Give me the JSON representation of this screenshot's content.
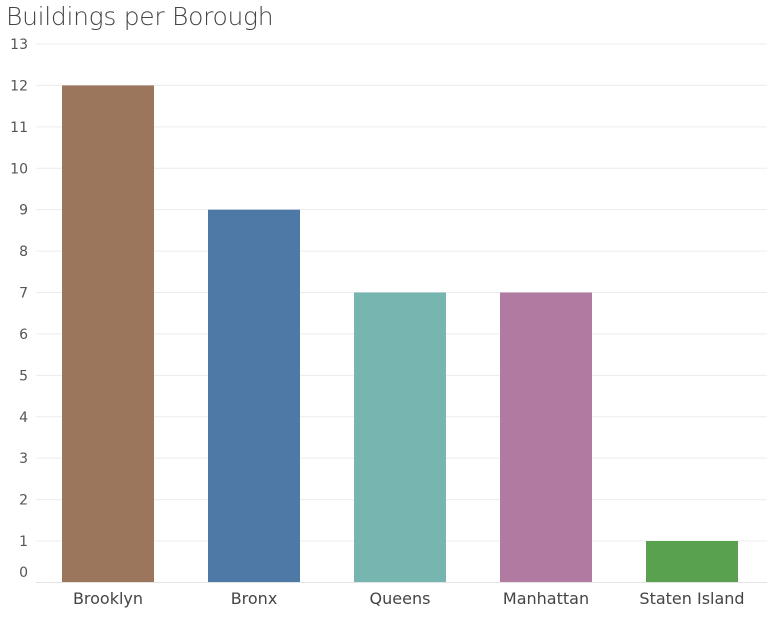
{
  "chart_data": {
    "type": "bar",
    "title": "Buildings per Borough",
    "categories": [
      "Brooklyn",
      "Bronx",
      "Queens",
      "Manhattan",
      "Staten Island"
    ],
    "values": [
      12,
      9,
      7,
      7,
      1
    ],
    "colors": [
      "#9B755C",
      "#4E79A7",
      "#76B5B0",
      "#B07AA1",
      "#59A14F"
    ],
    "ylim": [
      0,
      13
    ],
    "yticks": [
      0,
      1,
      2,
      3,
      4,
      5,
      6,
      7,
      8,
      9,
      10,
      11,
      12,
      13
    ],
    "xlabel": "",
    "ylabel": "",
    "grid": true
  }
}
